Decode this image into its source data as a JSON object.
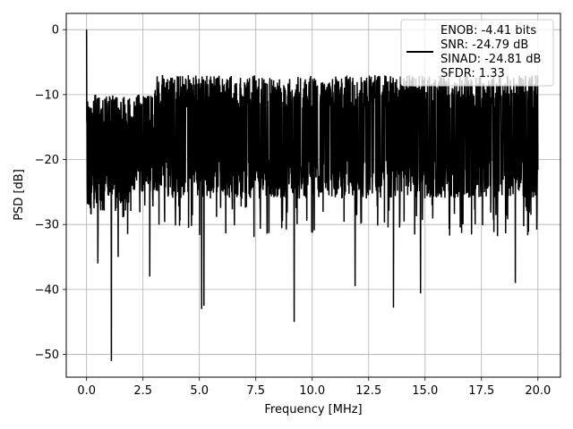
{
  "chart_data": {
    "type": "line",
    "title": "",
    "xlabel": "Frequency [MHz]",
    "ylabel": "PSD [dB]",
    "xlim": [
      -0.9,
      21.0
    ],
    "ylim": [
      -53.5,
      2.5
    ],
    "x_ticks": [
      0.0,
      2.5,
      5.0,
      7.5,
      10.0,
      12.5,
      15.0,
      17.5,
      20.0
    ],
    "x_tick_labels": [
      "0.0",
      "2.5",
      "5.0",
      "7.5",
      "10.0",
      "12.5",
      "15.0",
      "17.5",
      "20.0"
    ],
    "y_ticks": [
      0,
      -10,
      -20,
      -30,
      -40,
      -50
    ],
    "y_tick_labels": [
      "0",
      "−10",
      "−20",
      "−30",
      "−40",
      "−50"
    ],
    "grid": true,
    "legend_position": "top-right",
    "legend_lines": [
      "ENOB: -4.41 bits",
      "SNR: -24.79 dB",
      "SINAD: -24.81 dB",
      "SFDR: 1.33"
    ],
    "series_color": "#000000",
    "series": [
      {
        "description": "noise-like PSD trace from 0 to 20 MHz",
        "x_range": [
          0.0,
          20.0
        ],
        "n_points": 2000,
        "dc_peak": 0,
        "band_low_start": [
          0.0,
          -7.5,
          -32.0
        ],
        "band_mid": [
          -10.0,
          -24.0
        ],
        "band_high": [
          -6.0,
          -27.0
        ],
        "notable_dips": [
          {
            "x": 0.5,
            "y": -36
          },
          {
            "x": 1.1,
            "y": -51
          },
          {
            "x": 1.4,
            "y": -35
          },
          {
            "x": 2.8,
            "y": -38
          },
          {
            "x": 5.1,
            "y": -43
          },
          {
            "x": 5.2,
            "y": -42.5
          },
          {
            "x": 9.2,
            "y": -45
          },
          {
            "x": 11.9,
            "y": -39.5
          },
          {
            "x": 13.6,
            "y": -42.8
          },
          {
            "x": 14.8,
            "y": -40.6
          },
          {
            "x": 19.0,
            "y": -39
          }
        ]
      }
    ]
  }
}
